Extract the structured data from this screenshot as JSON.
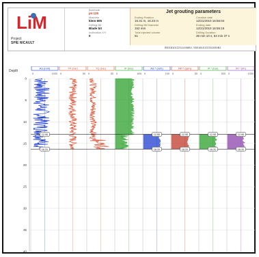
{
  "header": {
    "project_label": "Project",
    "project_value": "SPIE NICAULT",
    "borehole_label": "Borehole",
    "borehole_value": "jet 125",
    "machine_label": "Machine",
    "machine_value": "klem 805",
    "drilling_bit_label": "Drilling Bit",
    "drilling_bit_value": "Blade bit",
    "inclination_label": "Inclination X/Y",
    "inclination_value": "0",
    "jet_title": "Jet grouting parameters",
    "ending_position_label": "Ending Position",
    "ending_position_value": "16.31 m, 16.23 m",
    "bit_diameter_label": "Drilling Bit Diameter",
    "bit_diameter_value": "152 mm",
    "total_volume_label": "Total injected volume",
    "total_volume_value": "51",
    "creation_date_label": "Creation date",
    "creation_date_value": "12/21/2010 16:56:04",
    "ending_date_label": "Ending date",
    "ending_date_value": "12/21/2010 16:55:15",
    "duration_label": "Drilling Duration",
    "duration_value": "35 min 10 s, 54 min 37 s",
    "reference": "S501810122111456BJ, S501810122311530BJ"
  },
  "logo": {
    "text": "LiM",
    "color": "#d7262b",
    "accent": "#3a6fb4"
  },
  "chart_data": {
    "type": "line",
    "depth_axis": {
      "label": "Depth",
      "ylim": [
        0,
        40
      ],
      "ticks": [
        0,
        5,
        10,
        15,
        20,
        25,
        30,
        35,
        40
      ]
    },
    "tracks": [
      {
        "name": "AS (m/h)",
        "color": "#1f3fcf",
        "xlim": [
          0,
          1000
        ],
        "max_label": "1000"
      },
      {
        "name": "TP (bar)",
        "color": "#d9593b",
        "xlim": [
          0,
          50
        ],
        "max_label": "50"
      },
      {
        "name": "TQ (bar)",
        "color": "#d9593b",
        "xlim": [
          0,
          50
        ],
        "max_label": "50"
      },
      {
        "name": "IP (bar)",
        "color": "#2ca02c",
        "xlim": [
          0,
          600
        ],
        "max_label": "600"
      },
      {
        "name": "AS * (m/h)",
        "color": "#1f3fcf",
        "xlim": [
          0,
          100
        ],
        "max_label": "100"
      },
      {
        "name": "RP * (rpm)",
        "color": "#c0392b",
        "xlim": [
          0,
          50
        ],
        "max_label": "50"
      },
      {
        "name": "IP * (bar)",
        "color": "#2ca02c",
        "xlim": [
          0,
          500
        ],
        "max_label": "500"
      },
      {
        "name": "IR * (l/h)",
        "color": "#8e44ad",
        "xlim": [
          0,
          1000
        ],
        "max_label": "1000"
      }
    ],
    "markers": [
      {
        "depth": 12.9,
        "label": "12.90"
      },
      {
        "depth": 16.31,
        "label": "16.31"
      }
    ],
    "grid": true
  }
}
